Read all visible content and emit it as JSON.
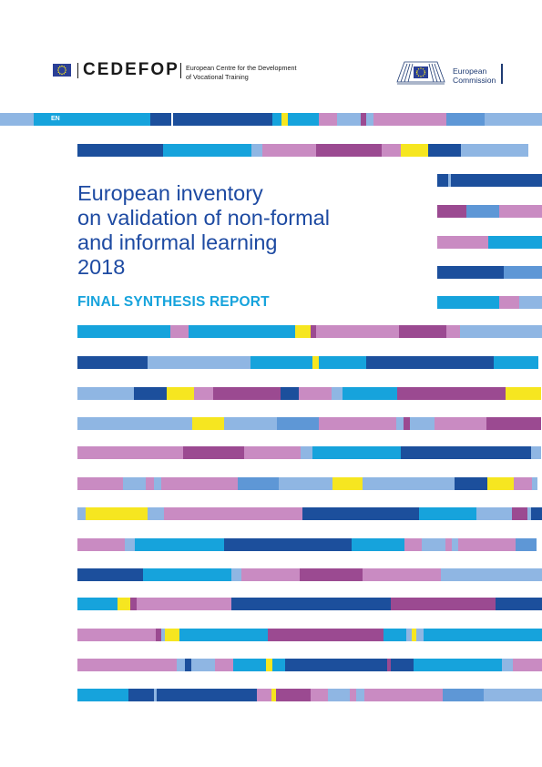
{
  "header": {
    "cedefop_logo_text": "CEDEFOP",
    "cedefop_full_name_line1": "European Centre for the Development",
    "cedefop_full_name_line2": "of Vocational Training",
    "ec_line1": "European",
    "ec_line2": "Commission"
  },
  "language_label": "EN",
  "title_lines": [
    "European inventory",
    "on validation of non-formal",
    "and informal learning",
    "2018"
  ],
  "subtitle": "FINAL SYNTHESIS REPORT",
  "colors": {
    "dark_blue": "#1c4f9c",
    "cyan": "#16a3dc",
    "light_blue": "#8fb6e3",
    "mid_blue": "#5e97d6",
    "pink": "#c98bc2",
    "purple": "#9b4a91",
    "yellow": "#f6e620",
    "eu_blue": "#2a3f96"
  }
}
